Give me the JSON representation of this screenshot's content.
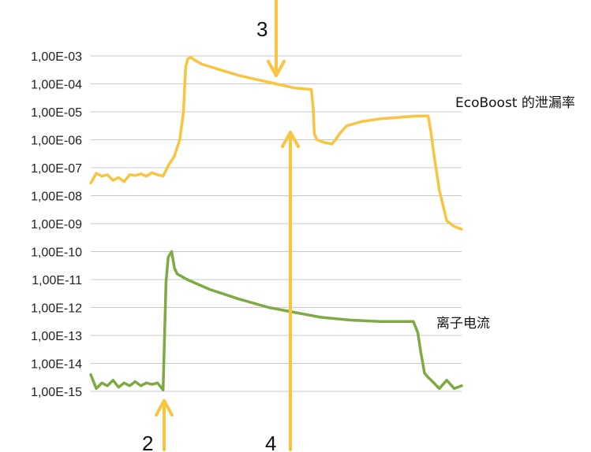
{
  "chart_data": {
    "type": "line",
    "title": "",
    "xlabel": "",
    "ylabel": "",
    "y_scale": "log",
    "ylim": [
      1e-15,
      0.001
    ],
    "xlim": [
      0,
      100
    ],
    "grid": true,
    "y_tick_labels": [
      "1,00E-03",
      "1,00E-04",
      "1,00E-05",
      "1,00E-06",
      "1,00E-07",
      "1,00E-08",
      "1,00E-09",
      "1,00E-10",
      "1,00E-11",
      "1,00E-12",
      "1,00E-13",
      "1,00E-14",
      "1,00E-15"
    ],
    "y_tick_exponents": [
      -3,
      -4,
      -5,
      -6,
      -7,
      -8,
      -9,
      -10,
      -11,
      -12,
      -13,
      -14,
      -15
    ],
    "series": [
      {
        "name": "EcoBoost 的泄漏率",
        "color": "#F9C440",
        "x": [
          0,
          1.5,
          3,
          4.5,
          6,
          7.5,
          9,
          10.5,
          12,
          13.5,
          15,
          16.5,
          18,
          19.5,
          21,
          22.5,
          24,
          25,
          25.6,
          26.2,
          27,
          28,
          30,
          35,
          40,
          45,
          50,
          55,
          59.5,
          60,
          60.3,
          61,
          63,
          65,
          66,
          67,
          69,
          73,
          78,
          83,
          88,
          91,
          91.7,
          92.5,
          94,
          96,
          98,
          100
        ],
        "y": [
          -7.55,
          -7.2,
          -7.3,
          -7.25,
          -7.45,
          -7.35,
          -7.5,
          -7.25,
          -7.28,
          -7.22,
          -7.3,
          -7.18,
          -7.25,
          -7.3,
          -6.9,
          -6.6,
          -6.0,
          -5.0,
          -3.4,
          -3.1,
          -3.05,
          -3.15,
          -3.3,
          -3.5,
          -3.7,
          -3.85,
          -4.0,
          -4.15,
          -4.2,
          -4.9,
          -5.8,
          -6.0,
          -6.1,
          -6.15,
          -6.0,
          -5.8,
          -5.5,
          -5.35,
          -5.25,
          -5.2,
          -5.15,
          -5.15,
          -5.7,
          -6.5,
          -7.8,
          -8.9,
          -9.1,
          -9.2
        ]
      },
      {
        "name": "离子电流",
        "color": "#7DAA41",
        "x": [
          0,
          1.5,
          3,
          4.5,
          6,
          7.5,
          9,
          10.5,
          12,
          13.5,
          15,
          16.5,
          18,
          19.5,
          20.3,
          20.9,
          21.8,
          22.6,
          23.3,
          24,
          26,
          32,
          40,
          48,
          56,
          62,
          70,
          78,
          84,
          87,
          88.2,
          89,
          90,
          91,
          92.5,
          94,
          96,
          98,
          100
        ],
        "y": [
          -14.4,
          -14.9,
          -14.7,
          -14.8,
          -14.6,
          -14.85,
          -14.7,
          -14.8,
          -14.65,
          -14.8,
          -14.7,
          -14.75,
          -14.7,
          -14.95,
          -11.1,
          -10.2,
          -10.0,
          -10.6,
          -10.8,
          -10.85,
          -11.0,
          -11.35,
          -11.7,
          -12.0,
          -12.2,
          -12.35,
          -12.45,
          -12.5,
          -12.5,
          -12.5,
          -12.9,
          -13.6,
          -14.35,
          -14.5,
          -14.7,
          -14.9,
          -14.6,
          -14.9,
          -14.8
        ]
      }
    ],
    "annotations": [
      {
        "label": "3",
        "x": 60,
        "direction": "down"
      },
      {
        "label": "4",
        "x": 62,
        "direction": "up"
      },
      {
        "label": "2",
        "x": 20.5,
        "direction": "up"
      }
    ],
    "arrow_color": "#F9C440"
  }
}
